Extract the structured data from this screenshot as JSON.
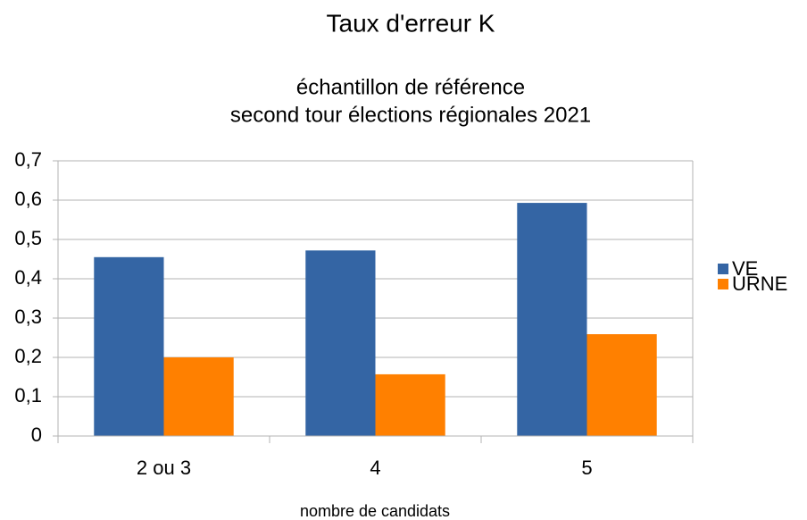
{
  "chart_data": {
    "type": "bar",
    "title": "Taux d'erreur K",
    "subtitle": [
      "échantillon de référence",
      "second tour élections régionales 2021"
    ],
    "x_label": "nombre de candidats",
    "categories": [
      "2 ou 3",
      "4",
      "5"
    ],
    "series": [
      {
        "name": "VE",
        "color": "#3465a4",
        "values": [
          0.455,
          0.472,
          0.593
        ]
      },
      {
        "name": "URNE",
        "color": "#ff8000",
        "values": [
          0.2,
          0.157,
          0.259
        ]
      }
    ],
    "ylim": [
      0,
      0.7
    ],
    "yticks": [
      0,
      {
        "value": 0.1,
        "label": "0,1"
      },
      {
        "value": 0.2,
        "label": "0,2"
      },
      {
        "value": 0.3,
        "label": "0,3"
      },
      {
        "value": 0.4,
        "label": "0,4"
      },
      {
        "value": 0.5,
        "label": "0,5"
      },
      {
        "value": 0.6,
        "label": "0,6"
      },
      {
        "value": 0.7,
        "label": "0,7"
      }
    ],
    "grid": true,
    "legend": "right"
  }
}
